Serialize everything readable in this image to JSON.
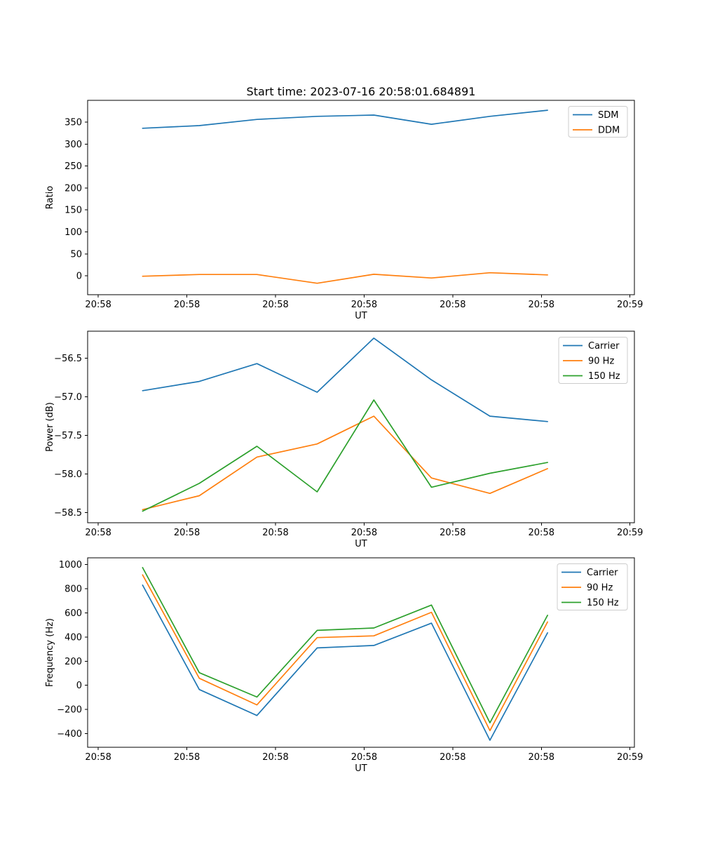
{
  "figure": {
    "title": "Start time: 2023-07-16 20:58:01.684891",
    "background": "#ffffff",
    "axis_color": "#000000",
    "legend_border_color": "#cccccc"
  },
  "chart_data": [
    {
      "type": "line",
      "name": "ratio-vs-time",
      "xlabel": "UT",
      "ylabel": "Ratio",
      "x_axis_note": "seconds after 20:58:00 UT",
      "x": [
        5.0,
        11.4,
        17.9,
        24.7,
        31.1,
        37.6,
        44.2,
        50.7
      ],
      "xlim": [
        -1.2,
        60.5
      ],
      "xticks": [
        0,
        10,
        20,
        30,
        40,
        50,
        60
      ],
      "xtick_labels": [
        "20:58",
        "20:58",
        "20:58",
        "20:58",
        "20:58",
        "20:58",
        "20:59"
      ],
      "ylim": [
        -43,
        399.5
      ],
      "yticks": [
        0,
        50,
        100,
        150,
        200,
        250,
        300,
        350
      ],
      "ytick_labels": [
        "0",
        "50",
        "100",
        "150",
        "200",
        "250",
        "300",
        "350"
      ],
      "grid": false,
      "legend_position": "upper right",
      "series": [
        {
          "name": "SDM",
          "color": "#1f77b4",
          "values": [
            336,
            342,
            356,
            363,
            366,
            345,
            363,
            377
          ]
        },
        {
          "name": "DDM",
          "color": "#ff7f0e",
          "values": [
            -1,
            3,
            3,
            -17,
            3.5,
            -5,
            7,
            2
          ]
        }
      ]
    },
    {
      "type": "line",
      "name": "power-vs-time",
      "xlabel": "UT",
      "ylabel": "Power (dB)",
      "x_axis_note": "seconds after 20:58:00 UT",
      "x": [
        5.0,
        11.4,
        17.9,
        24.7,
        31.1,
        37.6,
        44.2,
        50.7
      ],
      "xlim": [
        -1.2,
        60.5
      ],
      "xticks": [
        0,
        10,
        20,
        30,
        40,
        50,
        60
      ],
      "xtick_labels": [
        "20:58",
        "20:58",
        "20:58",
        "20:58",
        "20:58",
        "20:58",
        "20:59"
      ],
      "ylim": [
        -58.63,
        -56.15
      ],
      "yticks": [
        -58.5,
        -58.0,
        -57.5,
        -57.0,
        -56.5
      ],
      "ytick_labels": [
        "−58.5",
        "−58.0",
        "−57.5",
        "−57.0",
        "−56.5"
      ],
      "grid": false,
      "legend_position": "upper right",
      "series": [
        {
          "name": "Carrier",
          "color": "#1f77b4",
          "values": [
            -56.92,
            -56.8,
            -56.57,
            -56.94,
            -56.24,
            -56.78,
            -57.25,
            -57.32
          ]
        },
        {
          "name": "90 Hz",
          "color": "#ff7f0e",
          "values": [
            -58.46,
            -58.28,
            -57.78,
            -57.61,
            -57.25,
            -58.05,
            -58.25,
            -57.93
          ]
        },
        {
          "name": "150 Hz",
          "color": "#2ca02c",
          "values": [
            -58.48,
            -58.12,
            -57.64,
            -58.23,
            -57.04,
            -58.17,
            -57.99,
            -57.85
          ]
        }
      ]
    },
    {
      "type": "line",
      "name": "frequency-vs-time",
      "xlabel": "UT",
      "ylabel": "Frequency (Hz)",
      "x_axis_note": "seconds after 20:58:00 UT",
      "x": [
        5.0,
        11.4,
        17.9,
        24.7,
        31.1,
        37.6,
        44.2,
        50.7
      ],
      "xlim": [
        -1.2,
        60.5
      ],
      "xticks": [
        0,
        10,
        20,
        30,
        40,
        50,
        60
      ],
      "xtick_labels": [
        "20:58",
        "20:58",
        "20:58",
        "20:58",
        "20:58",
        "20:58",
        "20:59"
      ],
      "ylim": [
        -513,
        1056
      ],
      "yticks": [
        -400,
        -200,
        0,
        200,
        400,
        600,
        800,
        1000
      ],
      "ytick_labels": [
        "−400",
        "−200",
        "0",
        "200",
        "400",
        "600",
        "800",
        "1000"
      ],
      "grid": false,
      "legend_position": "upper right",
      "series": [
        {
          "name": "Carrier",
          "color": "#1f77b4",
          "values": [
            830,
            -35,
            -250,
            310,
            330,
            515,
            -455,
            435
          ]
        },
        {
          "name": "90 Hz",
          "color": "#ff7f0e",
          "values": [
            915,
            58,
            -162,
            395,
            410,
            605,
            -375,
            525
          ]
        },
        {
          "name": "150 Hz",
          "color": "#2ca02c",
          "values": [
            975,
            105,
            -97,
            455,
            475,
            665,
            -310,
            580
          ]
        }
      ]
    }
  ]
}
